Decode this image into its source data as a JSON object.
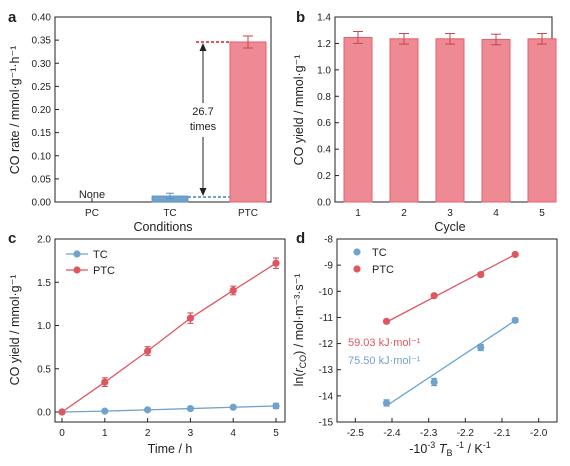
{
  "colors": {
    "tc": "#6fa3cd",
    "ptc": "#df5560",
    "bar_fill": "#ee8a93",
    "bar_edge": "#e2606b"
  },
  "chart_data": [
    {
      "panel": "a",
      "type": "bar",
      "xlabel": "Conditions",
      "ylabel": "CO rate / mmol·g⁻¹·h⁻¹",
      "categories": [
        "PC",
        "TC",
        "PTC"
      ],
      "values": [
        0,
        0.013,
        0.346
      ],
      "errors": [
        0,
        0.006,
        0.013
      ],
      "ylim": [
        0,
        0.4
      ],
      "yticks": [
        "0.00",
        "0.05",
        "0.10",
        "0.15",
        "0.20",
        "0.25",
        "0.30",
        "0.35",
        "0.40"
      ],
      "none_label": "None",
      "ratio_value": "26.7",
      "ratio_unit": "times"
    },
    {
      "panel": "b",
      "type": "bar",
      "xlabel": "Cycle",
      "ylabel": "CO yield / mmol·g⁻¹",
      "categories": [
        "1",
        "2",
        "3",
        "4",
        "5"
      ],
      "values": [
        1.245,
        1.235,
        1.235,
        1.23,
        1.235
      ],
      "errors": [
        0.045,
        0.04,
        0.04,
        0.04,
        0.04
      ],
      "ylim": [
        0,
        1.4
      ],
      "yticks": [
        "0.0",
        "0.2",
        "0.4",
        "0.6",
        "0.8",
        "1.0",
        "1.2",
        "1.4"
      ]
    },
    {
      "panel": "c",
      "type": "line",
      "xlabel": "Time / h",
      "ylabel": "CO yield / mmol·g⁻¹",
      "x": [
        0,
        1,
        2,
        3,
        4,
        5
      ],
      "xlim": [
        0,
        5
      ],
      "ylim": [
        0,
        2.0
      ],
      "xticks": [
        "0",
        "1",
        "2",
        "3",
        "4",
        "5"
      ],
      "yticks": [
        "0.0",
        "0.5",
        "1.0",
        "1.5",
        "2.0"
      ],
      "legend": "top-left",
      "series": [
        {
          "name": "TC",
          "values": [
            0,
            0.01,
            0.025,
            0.04,
            0.055,
            0.07
          ],
          "errors": [
            0,
            0.01,
            0.01,
            0.015,
            0.02,
            0.03
          ]
        },
        {
          "name": "PTC",
          "values": [
            0,
            0.345,
            0.705,
            1.085,
            1.405,
            1.72
          ],
          "errors": [
            0,
            0.05,
            0.05,
            0.06,
            0.05,
            0.06
          ]
        }
      ]
    },
    {
      "panel": "d",
      "type": "scatter",
      "xlabel_prefix": "-10",
      "xlabel_exp": "-3",
      "xlabel_var": "T",
      "xlabel_sub": "B",
      "xlabel_exp2": "-1",
      "xlabel_unit": " / K",
      "xlabel_exp3": "-1",
      "ylabel_pre": "ln(",
      "ylabel_var": "r",
      "ylabel_sub": "CO",
      "ylabel_post": ") / mol·m⁻³·s⁻¹",
      "xlim": [
        -2.55,
        -1.95
      ],
      "ylim": [
        -15,
        -8
      ],
      "xticks": [
        "-2.5",
        "-2.4",
        "-2.3",
        "-2.2",
        "-2.1",
        "-2.0"
      ],
      "yticks": [
        "-15",
        "-14",
        "-13",
        "-12",
        "-11",
        "-10",
        "-9",
        "-8"
      ],
      "legend": "top-left",
      "series": [
        {
          "name": "TC",
          "x": [
            -2.415,
            -2.285,
            -2.158,
            -2.064
          ],
          "values": [
            -14.27,
            -13.47,
            -12.15,
            -11.11
          ],
          "errors": [
            0.12,
            0.14,
            0.12,
            0.08
          ],
          "fit": [
            [
              -2.415,
              -14.38
            ],
            [
              -2.064,
              -11.12
            ]
          ],
          "energy": "75.50 kJ·mol⁻¹"
        },
        {
          "name": "PTC",
          "x": [
            -2.415,
            -2.285,
            -2.158,
            -2.064
          ],
          "values": [
            -11.15,
            -10.17,
            -9.36,
            -8.59
          ],
          "errors": [
            0.06,
            0.06,
            0.08,
            0.05
          ],
          "fit": [
            [
              -2.415,
              -11.18
            ],
            [
              -2.064,
              -8.59
            ]
          ],
          "energy": "59.03 kJ·mol⁻¹"
        }
      ]
    }
  ]
}
